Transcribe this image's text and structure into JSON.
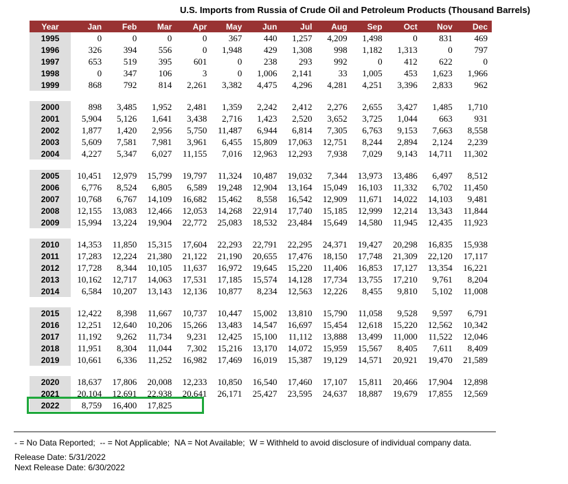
{
  "title": "U.S. Imports from Russia of Crude Oil and Petroleum Products (Thousand Barrels)",
  "colors": {
    "header_bg": "#993333",
    "header_text": "#FFFFFF",
    "year_col_bg": "#DEDEDE",
    "highlight_border": "#1FA83C"
  },
  "table": {
    "columns": [
      "Year",
      "Jan",
      "Feb",
      "Mar",
      "Apr",
      "May",
      "Jun",
      "Jul",
      "Aug",
      "Sep",
      "Oct",
      "Nov",
      "Dec"
    ],
    "groups": [
      {
        "rows": [
          {
            "year": "1995",
            "values": [
              "0",
              "0",
              "0",
              "0",
              "367",
              "440",
              "1,257",
              "4,209",
              "1,498",
              "0",
              "831",
              "469"
            ]
          },
          {
            "year": "1996",
            "values": [
              "326",
              "394",
              "556",
              "0",
              "1,948",
              "429",
              "1,308",
              "998",
              "1,182",
              "1,313",
              "0",
              "797"
            ]
          },
          {
            "year": "1997",
            "values": [
              "653",
              "519",
              "395",
              "601",
              "0",
              "238",
              "293",
              "992",
              "0",
              "412",
              "622",
              "0"
            ]
          },
          {
            "year": "1998",
            "values": [
              "0",
              "347",
              "106",
              "3",
              "0",
              "1,006",
              "2,141",
              "33",
              "1,005",
              "453",
              "1,623",
              "1,966"
            ]
          },
          {
            "year": "1999",
            "values": [
              "868",
              "792",
              "814",
              "2,261",
              "3,382",
              "4,475",
              "4,296",
              "4,281",
              "4,251",
              "3,396",
              "2,833",
              "962"
            ]
          }
        ]
      },
      {
        "rows": [
          {
            "year": "2000",
            "values": [
              "898",
              "3,485",
              "1,952",
              "2,481",
              "1,359",
              "2,242",
              "2,412",
              "2,276",
              "2,655",
              "3,427",
              "1,485",
              "1,710"
            ]
          },
          {
            "year": "2001",
            "values": [
              "5,904",
              "5,126",
              "1,641",
              "3,438",
              "2,716",
              "1,423",
              "2,520",
              "3,652",
              "3,725",
              "1,044",
              "663",
              "931"
            ]
          },
          {
            "year": "2002",
            "values": [
              "1,877",
              "1,420",
              "2,956",
              "5,750",
              "11,487",
              "6,944",
              "6,814",
              "7,305",
              "6,763",
              "9,153",
              "7,663",
              "8,558"
            ]
          },
          {
            "year": "2003",
            "values": [
              "5,609",
              "7,581",
              "7,981",
              "3,961",
              "6,455",
              "15,809",
              "17,063",
              "12,751",
              "8,244",
              "2,894",
              "2,124",
              "2,239"
            ]
          },
          {
            "year": "2004",
            "values": [
              "4,227",
              "5,347",
              "6,027",
              "11,155",
              "7,016",
              "12,963",
              "12,293",
              "7,938",
              "7,029",
              "9,143",
              "14,711",
              "11,302"
            ]
          }
        ]
      },
      {
        "rows": [
          {
            "year": "2005",
            "values": [
              "10,451",
              "12,979",
              "15,799",
              "19,797",
              "11,324",
              "10,487",
              "19,032",
              "7,344",
              "13,973",
              "13,486",
              "6,497",
              "8,512"
            ]
          },
          {
            "year": "2006",
            "values": [
              "6,776",
              "8,524",
              "6,805",
              "6,589",
              "19,248",
              "12,904",
              "13,164",
              "15,049",
              "16,103",
              "11,332",
              "6,702",
              "11,450"
            ]
          },
          {
            "year": "2007",
            "values": [
              "10,768",
              "6,767",
              "14,109",
              "16,682",
              "15,462",
              "8,558",
              "16,542",
              "12,909",
              "11,671",
              "14,022",
              "14,103",
              "9,481"
            ]
          },
          {
            "year": "2008",
            "values": [
              "12,155",
              "13,083",
              "12,466",
              "12,053",
              "14,268",
              "22,914",
              "17,740",
              "15,185",
              "12,999",
              "12,214",
              "13,343",
              "11,844"
            ]
          },
          {
            "year": "2009",
            "values": [
              "15,994",
              "13,224",
              "19,904",
              "22,772",
              "25,083",
              "18,532",
              "23,484",
              "15,649",
              "14,580",
              "11,945",
              "12,435",
              "11,923"
            ]
          }
        ]
      },
      {
        "rows": [
          {
            "year": "2010",
            "values": [
              "14,353",
              "11,850",
              "15,315",
              "17,604",
              "22,293",
              "22,791",
              "22,295",
              "24,371",
              "19,427",
              "20,298",
              "16,835",
              "15,938"
            ]
          },
          {
            "year": "2011",
            "values": [
              "17,283",
              "12,224",
              "21,380",
              "21,122",
              "21,190",
              "20,655",
              "17,476",
              "18,150",
              "17,748",
              "21,309",
              "22,120",
              "17,117"
            ]
          },
          {
            "year": "2012",
            "values": [
              "17,728",
              "8,344",
              "10,105",
              "11,637",
              "16,972",
              "19,645",
              "15,220",
              "11,406",
              "16,853",
              "17,127",
              "13,354",
              "16,221"
            ]
          },
          {
            "year": "2013",
            "values": [
              "10,162",
              "12,717",
              "14,063",
              "17,531",
              "17,185",
              "15,574",
              "14,128",
              "17,734",
              "13,755",
              "17,210",
              "9,761",
              "8,204"
            ]
          },
          {
            "year": "2014",
            "values": [
              "6,584",
              "10,207",
              "13,143",
              "12,136",
              "10,877",
              "8,234",
              "12,563",
              "12,226",
              "8,455",
              "9,810",
              "5,102",
              "11,008"
            ]
          }
        ]
      },
      {
        "rows": [
          {
            "year": "2015",
            "values": [
              "12,422",
              "8,398",
              "11,667",
              "10,737",
              "10,447",
              "15,002",
              "13,810",
              "15,790",
              "11,058",
              "9,528",
              "9,597",
              "6,791"
            ]
          },
          {
            "year": "2016",
            "values": [
              "12,251",
              "12,640",
              "10,206",
              "15,266",
              "13,483",
              "14,547",
              "16,697",
              "15,454",
              "12,618",
              "15,220",
              "12,562",
              "10,342"
            ]
          },
          {
            "year": "2017",
            "values": [
              "11,192",
              "9,262",
              "11,734",
              "9,231",
              "12,425",
              "15,100",
              "11,112",
              "13,888",
              "13,499",
              "11,000",
              "11,522",
              "12,046"
            ]
          },
          {
            "year": "2018",
            "values": [
              "11,951",
              "8,304",
              "11,044",
              "7,302",
              "15,216",
              "13,170",
              "14,072",
              "15,959",
              "15,567",
              "8,405",
              "7,611",
              "8,409"
            ]
          },
          {
            "year": "2019",
            "values": [
              "10,661",
              "6,336",
              "11,252",
              "16,982",
              "17,469",
              "16,019",
              "15,387",
              "19,129",
              "14,571",
              "20,921",
              "19,470",
              "21,589"
            ]
          }
        ]
      },
      {
        "rows": [
          {
            "year": "2020",
            "values": [
              "18,637",
              "17,806",
              "20,008",
              "12,233",
              "10,850",
              "16,540",
              "17,460",
              "17,107",
              "15,811",
              "20,466",
              "17,904",
              "12,898"
            ]
          },
          {
            "year": "2021",
            "values": [
              "20,104",
              "12,691",
              "22,938",
              "20,641",
              "26,171",
              "25,427",
              "23,595",
              "24,637",
              "18,887",
              "19,679",
              "17,855",
              "12,569"
            ]
          },
          {
            "year": "2022",
            "values": [
              "8,759",
              "16,400",
              "17,825",
              "",
              "",
              "",
              "",
              "",
              "",
              "",
              "",
              ""
            ]
          }
        ]
      }
    ]
  },
  "highlight": {
    "year": "2022",
    "description": "green annotation box around 2022 row (Year through Mar)"
  },
  "footer": {
    "legend": "- = No Data Reported;  -- = Not Applicable;  NA = Not Available;  W = Withheld to avoid disclosure of individual company data.",
    "release_date": "Release Date: 5/31/2022",
    "next_release_date": "Next Release Date: 6/30/2022"
  }
}
